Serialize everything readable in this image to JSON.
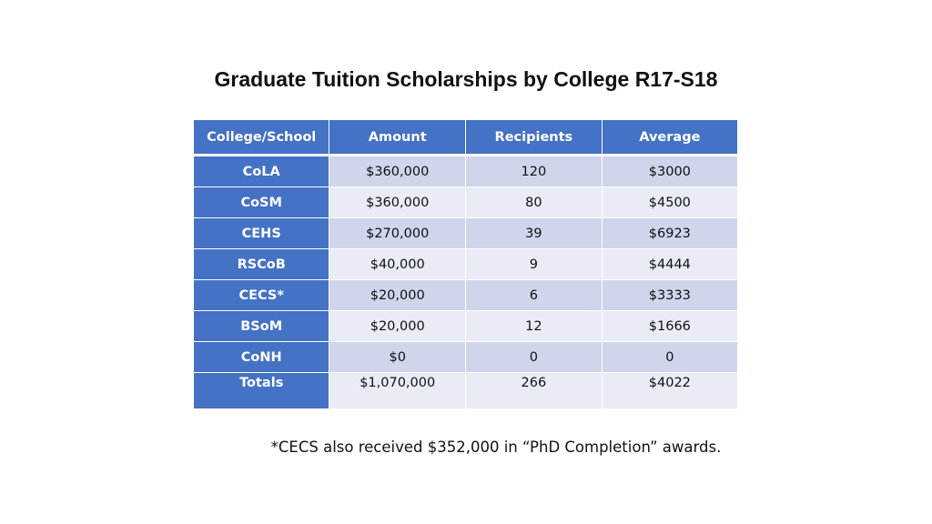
{
  "slide": {
    "title": "Graduate Tuition Scholarships by College R17-S18",
    "footnote": "*CECS also received $352,000 in “PhD Completion” awards."
  },
  "table": {
    "headers": [
      "College/School",
      "Amount",
      "Recipients",
      "Average"
    ],
    "rows": [
      {
        "college": "CoLA",
        "amount": "$360,000",
        "recipients": "120",
        "average": "$3000"
      },
      {
        "college": "CoSM",
        "amount": "$360,000",
        "recipients": "80",
        "average": "$4500"
      },
      {
        "college": "CEHS",
        "amount": "$270,000",
        "recipients": "39",
        "average": "$6923"
      },
      {
        "college": "RSCoB",
        "amount": "$40,000",
        "recipients": "9",
        "average": "$4444"
      },
      {
        "college": "CECS*",
        "amount": "$20,000",
        "recipients": "6",
        "average": "$3333"
      },
      {
        "college": "BSoM",
        "amount": "$20,000",
        "recipients": "12",
        "average": "$1666"
      },
      {
        "college": "CoNH",
        "amount": "$0",
        "recipients": "0",
        "average": "0"
      },
      {
        "college": "Totals",
        "amount": "$1,070,000",
        "recipients": "266",
        "average": "$4022"
      }
    ]
  },
  "colors": {
    "header_blue": "#4472c4",
    "row_band_dark": "#cfd5ea",
    "row_band_light": "#e9ebf5"
  }
}
